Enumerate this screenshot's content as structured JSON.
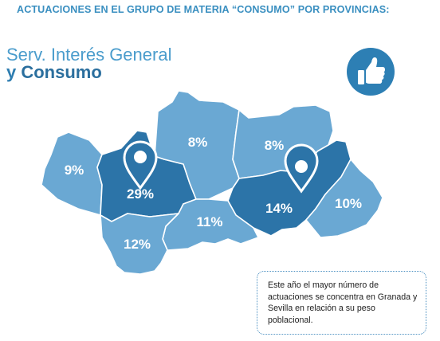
{
  "heading": "ACTUACIONES EN EL GRUPO DE MATERIA “CONSUMO” POR PROVINCIAS:",
  "title": {
    "line1": "Serv. Interés General",
    "line2_prefix": "y ",
    "line2_main": "Consumo"
  },
  "provinces": [
    {
      "value": "9%",
      "color": "#6aa8d3"
    },
    {
      "value": "29%",
      "color": "#2c74a8"
    },
    {
      "value": "8%",
      "color": "#6aa8d3"
    },
    {
      "value": "8%",
      "color": "#6aa8d3"
    },
    {
      "value": "14%",
      "color": "#2c74a8"
    },
    {
      "value": "10%",
      "color": "#6aa8d3"
    },
    {
      "value": "11%",
      "color": "#6aa8d3"
    },
    {
      "value": "12%",
      "color": "#6aa8d3"
    }
  ],
  "note": "Este año el mayor número de actuaciones se concentra en Granada y Sevilla en relación a su peso poblacional.",
  "colors": {
    "light": "#6aa8d3",
    "dark": "#2c74a8",
    "accent": "#2d7fb4"
  },
  "icons": [
    "thumbs-up-icon",
    "map-pin-icon"
  ]
}
